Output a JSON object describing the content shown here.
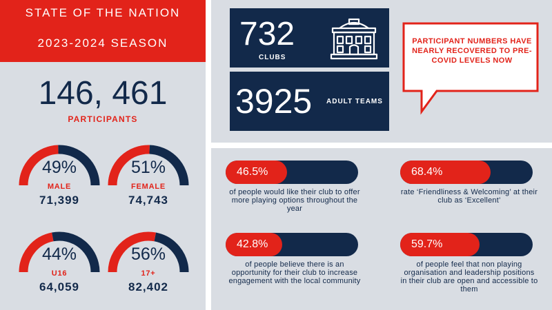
{
  "header": {
    "title_line1": "STATE OF THE NATION",
    "title_line2": "2023-2024 SEASON"
  },
  "participants": {
    "total": "146, 461",
    "label": "PARTICIPANTS"
  },
  "gauges": [
    {
      "percent": "49%",
      "value": 0.49,
      "label": "MALE",
      "count": "71,399"
    },
    {
      "percent": "51%",
      "value": 0.51,
      "label": "FEMALE",
      "count": "74,743"
    },
    {
      "percent": "44%",
      "value": 0.44,
      "label": "U16",
      "count": "64,059"
    },
    {
      "percent": "56%",
      "value": 0.56,
      "label": "17+",
      "count": "82,402"
    }
  ],
  "clubs": {
    "number": "732",
    "label": "CLUBS",
    "icon": "building-icon"
  },
  "teams": {
    "number": "3925",
    "label": "ADULT TEAMS"
  },
  "callout": {
    "text": "PARTICIPANT NUMBERS HAVE NEARLY RECOVERED TO PRE-COVID LEVELS NOW"
  },
  "stats": [
    {
      "percent": "46.5%",
      "value": 0.465,
      "description": "of people would like their club to offer more playing options throughout the year"
    },
    {
      "percent": "68.4%",
      "value": 0.684,
      "description": "rate ‘Friendliness & Welcoming’ at their club as ‘Excellent’"
    },
    {
      "percent": "42.8%",
      "value": 0.428,
      "description": "of people believe there is an opportunity for their club to increase engagement with the local community"
    },
    {
      "percent": "59.7%",
      "value": 0.597,
      "description": "of people feel that non playing organisation and leadership positions in their club are open and accessible to them"
    }
  ],
  "colors": {
    "red": "#e2231a",
    "navy": "#12294a",
    "panel": "#d9dde3"
  }
}
